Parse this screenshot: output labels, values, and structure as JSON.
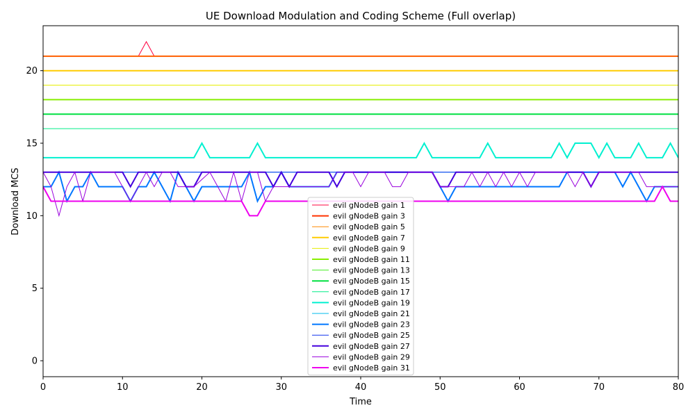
{
  "chart_data": {
    "type": "line",
    "title": "UE Download Modulation and Coding Scheme (Full overlap)",
    "xlabel": "Time",
    "ylabel": "Download MCS",
    "xlim": [
      0,
      80
    ],
    "ylim": [
      -1.1,
      23.1
    ],
    "xticks": [
      0,
      10,
      20,
      30,
      40,
      50,
      60,
      70,
      80
    ],
    "yticks": [
      0,
      5,
      10,
      15,
      20
    ],
    "grid": false,
    "legend_position": "lower-center",
    "series": [
      {
        "name": "evil gNodeB gain 1",
        "color": "#ff0040",
        "width": 1,
        "points": [
          [
            0,
            21
          ],
          [
            12,
            21
          ],
          [
            13,
            22
          ],
          [
            14,
            21
          ],
          [
            80,
            21
          ]
        ]
      },
      {
        "name": "evil gNodeB gain 3",
        "color": "#ff3300",
        "width": 2,
        "points": [
          [
            0,
            21
          ],
          [
            80,
            21
          ]
        ]
      },
      {
        "name": "evil gNodeB gain 5",
        "color": "#ff8800",
        "width": 1,
        "points": [
          [
            0,
            21
          ],
          [
            80,
            21
          ]
        ]
      },
      {
        "name": "evil gNodeB gain 7",
        "color": "#ffcc00",
        "width": 2,
        "points": [
          [
            0,
            20
          ],
          [
            80,
            20
          ]
        ]
      },
      {
        "name": "evil gNodeB gain 9",
        "color": "#e6ee00",
        "width": 1,
        "points": [
          [
            0,
            19
          ],
          [
            80,
            19
          ]
        ]
      },
      {
        "name": "evil gNodeB gain 11",
        "color": "#88ee00",
        "width": 2,
        "points": [
          [
            0,
            18
          ],
          [
            80,
            18
          ]
        ]
      },
      {
        "name": "evil gNodeB gain 13",
        "color": "#44ee22",
        "width": 1,
        "points": [
          [
            0,
            17
          ],
          [
            80,
            17
          ]
        ]
      },
      {
        "name": "evil gNodeB gain 15",
        "color": "#00e040",
        "width": 2,
        "points": [
          [
            0,
            17
          ],
          [
            80,
            17
          ]
        ]
      },
      {
        "name": "evil gNodeB gain 17",
        "color": "#00ee88",
        "width": 1,
        "points": [
          [
            0,
            16
          ],
          [
            80,
            16
          ]
        ]
      },
      {
        "name": "evil gNodeB gain 19",
        "color": "#00f0d0",
        "width": 2,
        "points": [
          [
            0,
            14
          ],
          [
            19,
            14
          ],
          [
            20,
            15
          ],
          [
            21,
            14
          ],
          [
            26,
            14
          ],
          [
            27,
            15
          ],
          [
            28,
            14
          ],
          [
            47,
            14
          ],
          [
            48,
            15
          ],
          [
            49,
            14
          ],
          [
            55,
            14
          ],
          [
            56,
            15
          ],
          [
            57,
            14
          ],
          [
            64,
            14
          ],
          [
            65,
            15
          ],
          [
            66,
            14
          ],
          [
            67,
            15
          ],
          [
            69,
            15
          ],
          [
            70,
            14
          ],
          [
            71,
            15
          ],
          [
            72,
            14
          ],
          [
            74,
            14
          ],
          [
            75,
            15
          ],
          [
            76,
            14
          ],
          [
            78,
            14
          ],
          [
            79,
            15
          ],
          [
            80,
            14
          ]
        ]
      },
      {
        "name": "evil gNodeB gain 21",
        "color": "#00bbee",
        "width": 1,
        "points": [
          [
            0,
            13
          ],
          [
            80,
            13
          ]
        ]
      },
      {
        "name": "evil gNodeB gain 23",
        "color": "#0077ff",
        "width": 2,
        "points": [
          [
            0,
            12
          ],
          [
            1,
            12
          ],
          [
            2,
            13
          ],
          [
            3,
            11
          ],
          [
            4,
            12
          ],
          [
            5,
            12
          ],
          [
            6,
            13
          ],
          [
            7,
            12
          ],
          [
            10,
            12
          ],
          [
            11,
            11
          ],
          [
            12,
            12
          ],
          [
            13,
            12
          ],
          [
            14,
            13
          ],
          [
            15,
            12
          ],
          [
            16,
            11
          ],
          [
            17,
            13
          ],
          [
            18,
            12
          ],
          [
            19,
            11
          ],
          [
            20,
            12
          ],
          [
            25,
            12
          ],
          [
            26,
            13
          ],
          [
            27,
            11
          ],
          [
            28,
            12
          ],
          [
            29,
            12
          ],
          [
            30,
            13
          ],
          [
            31,
            12
          ],
          [
            36,
            12
          ],
          [
            37,
            13
          ],
          [
            49,
            13
          ],
          [
            50,
            12
          ],
          [
            51,
            11
          ],
          [
            52,
            12
          ],
          [
            65,
            12
          ],
          [
            66,
            13
          ],
          [
            72,
            13
          ],
          [
            73,
            12
          ],
          [
            74,
            13
          ],
          [
            75,
            12
          ],
          [
            76,
            11
          ],
          [
            77,
            12
          ],
          [
            80,
            12
          ]
        ]
      },
      {
        "name": "evil gNodeB gain 25",
        "color": "#1133ee",
        "width": 1,
        "points": [
          [
            0,
            13
          ],
          [
            80,
            13
          ]
        ]
      },
      {
        "name": "evil gNodeB gain 27",
        "color": "#4400dd",
        "width": 2,
        "points": [
          [
            0,
            13
          ],
          [
            10,
            13
          ],
          [
            11,
            12
          ],
          [
            12,
            13
          ],
          [
            17,
            13
          ],
          [
            18,
            12
          ],
          [
            19,
            12
          ],
          [
            20,
            13
          ],
          [
            28,
            13
          ],
          [
            29,
            12
          ],
          [
            30,
            13
          ],
          [
            31,
            12
          ],
          [
            32,
            13
          ],
          [
            36,
            13
          ],
          [
            37,
            12
          ],
          [
            38,
            13
          ],
          [
            49,
            13
          ],
          [
            50,
            12
          ],
          [
            51,
            12
          ],
          [
            52,
            13
          ],
          [
            68,
            13
          ],
          [
            69,
            12
          ],
          [
            70,
            13
          ],
          [
            80,
            13
          ]
        ]
      },
      {
        "name": "evil gNodeB gain 29",
        "color": "#9900dd",
        "width": 1,
        "points": [
          [
            0,
            13
          ],
          [
            1,
            12
          ],
          [
            2,
            10
          ],
          [
            3,
            12
          ],
          [
            4,
            13
          ],
          [
            5,
            11
          ],
          [
            6,
            13
          ],
          [
            9,
            13
          ],
          [
            11,
            11
          ],
          [
            13,
            13
          ],
          [
            14,
            12
          ],
          [
            15,
            13
          ],
          [
            16,
            13
          ],
          [
            17,
            12
          ],
          [
            19,
            12
          ],
          [
            21,
            13
          ],
          [
            23,
            11
          ],
          [
            24,
            13
          ],
          [
            25,
            11
          ],
          [
            26,
            13
          ],
          [
            27,
            13
          ],
          [
            28,
            11
          ],
          [
            29,
            12
          ],
          [
            36,
            12
          ],
          [
            37,
            13
          ],
          [
            39,
            13
          ],
          [
            40,
            12
          ],
          [
            41,
            13
          ],
          [
            43,
            13
          ],
          [
            44,
            12
          ],
          [
            45,
            12
          ],
          [
            46,
            13
          ],
          [
            49,
            13
          ],
          [
            50,
            12
          ],
          [
            53,
            12
          ],
          [
            54,
            13
          ],
          [
            55,
            12
          ],
          [
            56,
            13
          ],
          [
            57,
            12
          ],
          [
            58,
            13
          ],
          [
            59,
            12
          ],
          [
            60,
            13
          ],
          [
            61,
            12
          ],
          [
            62,
            13
          ],
          [
            66,
            13
          ],
          [
            67,
            12
          ],
          [
            68,
            13
          ],
          [
            69,
            12
          ],
          [
            70,
            13
          ],
          [
            74,
            13
          ],
          [
            75,
            13
          ],
          [
            76,
            12
          ],
          [
            80,
            12
          ]
        ]
      },
      {
        "name": "evil gNodeB gain 31",
        "color": "#ee00ee",
        "width": 2,
        "points": [
          [
            0,
            12
          ],
          [
            1,
            11
          ],
          [
            25,
            11
          ],
          [
            26,
            10
          ],
          [
            27,
            10
          ],
          [
            28,
            11
          ],
          [
            77,
            11
          ],
          [
            78,
            12
          ],
          [
            79,
            11
          ],
          [
            80,
            11
          ]
        ]
      }
    ]
  }
}
